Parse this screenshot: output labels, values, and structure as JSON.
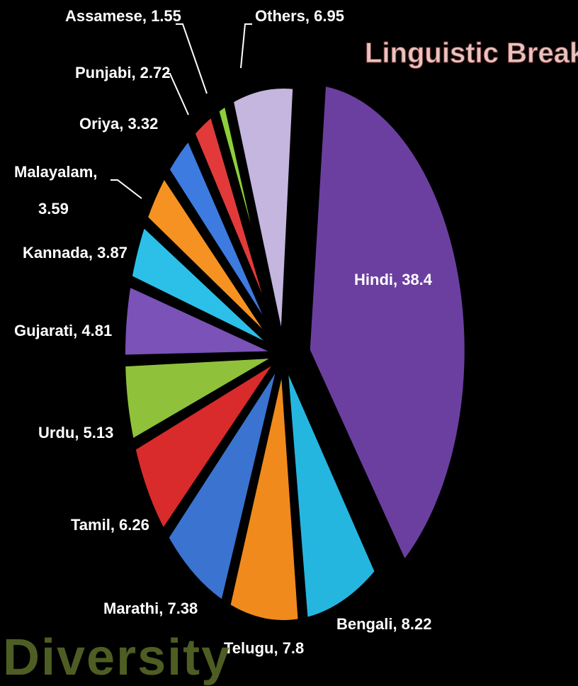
{
  "chart_data": {
    "type": "pie",
    "title": "Linguistic Breakup",
    "slices": [
      {
        "name": "Hindi",
        "value": 38.4,
        "color": "#6b3fa0",
        "label": "Hindi, 38.4"
      },
      {
        "name": "Bengali",
        "value": 8.22,
        "color": "#25b6e0",
        "label": "Bengali, 8.22"
      },
      {
        "name": "Telugu",
        "value": 7.8,
        "color": "#f08a1c",
        "label": "Telugu, 7.8"
      },
      {
        "name": "Marathi",
        "value": 7.38,
        "color": "#3a74d0",
        "label": "Marathi, 7.38"
      },
      {
        "name": "Tamil",
        "value": 6.26,
        "color": "#d92b2b",
        "label": "Tamil, 6.26"
      },
      {
        "name": "Urdu",
        "value": 5.13,
        "color": "#8fc23a",
        "label": "Urdu, 5.13"
      },
      {
        "name": "Gujarati",
        "value": 4.81,
        "color": "#7a52b8",
        "label": "Gujarati, 4.81"
      },
      {
        "name": "Kannada",
        "value": 3.87,
        "color": "#2cc0e8",
        "label": "Kannada, 3.87"
      },
      {
        "name": "Malayalam",
        "value": 3.59,
        "color": "#f59222",
        "label": "Malayalam,"
      },
      {
        "name": "Oriya",
        "value": 3.32,
        "color": "#3d7be0",
        "label": "Oriya, 3.32"
      },
      {
        "name": "Punjabi",
        "value": 2.72,
        "color": "#e23a3a",
        "label": "Punjabi, 2.72"
      },
      {
        "name": "Assamese",
        "value": 1.55,
        "color": "#8ccf3a",
        "label": "Assamese, 1.55"
      },
      {
        "name": "Others",
        "value": 6.95,
        "color": "#c4b6de",
        "label": "Others, 6.95"
      }
    ],
    "malayalam_value_line": "3.59"
  },
  "background_word": "Diversity"
}
